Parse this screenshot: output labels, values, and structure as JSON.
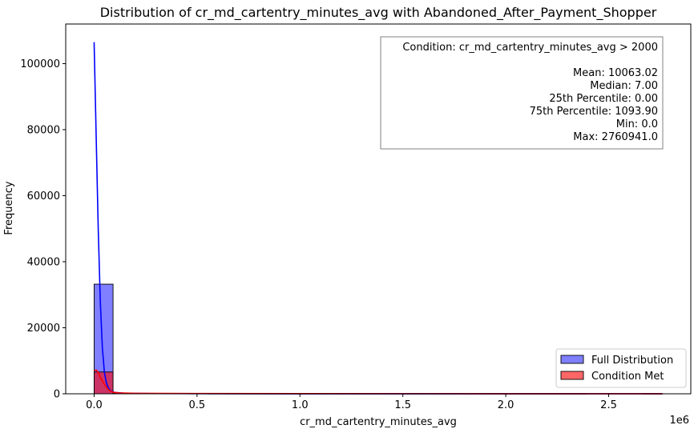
{
  "chart_data": {
    "type": "bar",
    "title": "Distribution of cr_md_cartentry_minutes_avg with Abandoned_After_Payment_Shopper",
    "xlabel": "cr_md_cartentry_minutes_avg",
    "ylabel": "Frequency",
    "x_scale_label": "1e6",
    "xlim": [
      -0.138,
      2.899
    ],
    "ylim": [
      0,
      112000
    ],
    "x_ticks": [
      0.0,
      0.5,
      1.0,
      1.5,
      2.0,
      2.5
    ],
    "x_tick_labels": [
      "0.0",
      "0.5",
      "1.0",
      "1.5",
      "2.0",
      "2.5"
    ],
    "y_ticks": [
      0,
      20000,
      40000,
      60000,
      80000,
      100000
    ],
    "y_tick_labels": [
      "0",
      "20000",
      "40000",
      "60000",
      "80000",
      "100000"
    ],
    "bin_edges": [
      0.0,
      0.092,
      0.184,
      0.276,
      0.368,
      0.46,
      0.552,
      0.644,
      0.736,
      0.828,
      0.92,
      1.012,
      1.104,
      1.196,
      1.288,
      1.38,
      1.472,
      1.564,
      1.656,
      1.748,
      1.84,
      1.932,
      2.024,
      2.116,
      2.208,
      2.3,
      2.392,
      2.484,
      2.576,
      2.668,
      2.761
    ],
    "series": [
      {
        "name": "Full Distribution",
        "color": "#0000ff",
        "values": [
          33200,
          250,
          110,
          60,
          40,
          30,
          20,
          15,
          12,
          10,
          8,
          6,
          5,
          4,
          3,
          3,
          2,
          2,
          2,
          1,
          1,
          1,
          1,
          1,
          1,
          1,
          0,
          0,
          0,
          1
        ],
        "kde": {
          "x": [
            0.0,
            0.01,
            0.02,
            0.03,
            0.04,
            0.05,
            0.06,
            0.07,
            0.08,
            0.1,
            0.15,
            0.3,
            1.0,
            2.0,
            2.761
          ],
          "y": [
            106500,
            78000,
            50000,
            28000,
            14000,
            6500,
            3200,
            1700,
            900,
            400,
            150,
            60,
            20,
            10,
            5
          ]
        }
      },
      {
        "name": "Condition Met",
        "color": "#ff0000",
        "values": [
          6600,
          250,
          110,
          60,
          40,
          30,
          20,
          15,
          12,
          10,
          8,
          6,
          5,
          4,
          3,
          3,
          2,
          2,
          2,
          1,
          1,
          1,
          1,
          1,
          1,
          1,
          0,
          0,
          0,
          1
        ],
        "kde": {
          "x": [
            0.0,
            0.01,
            0.02,
            0.03,
            0.05,
            0.07,
            0.09,
            0.12,
            0.2,
            0.5,
            1.0,
            2.0,
            2.761
          ],
          "y": [
            7000,
            7200,
            6500,
            5000,
            2800,
            1200,
            500,
            250,
            150,
            80,
            40,
            20,
            10
          ]
        }
      }
    ],
    "legend": {
      "placement": "lower-right",
      "entries": [
        "Full Distribution",
        "Condition Met"
      ]
    },
    "annotation": {
      "placement": "upper-right",
      "lines": [
        "Condition: cr_md_cartentry_minutes_avg > 2000",
        "",
        "Mean: 10063.02",
        "Median: 7.00",
        "25th Percentile: 0.00",
        "75th Percentile: 1093.90",
        "Min: 0.0",
        "Max: 2760941.0"
      ]
    },
    "grid": false
  }
}
